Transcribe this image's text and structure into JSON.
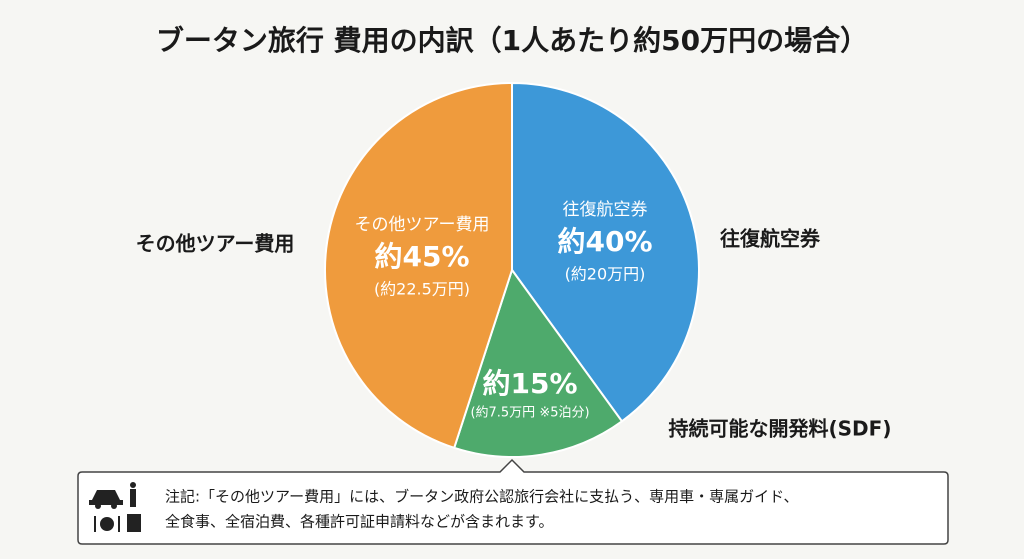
{
  "chart_data": {
    "type": "pie",
    "title": "ブータン旅行 費用の内訳（1人あたり約50万円の場合）",
    "categories": [
      "往復航空券",
      "持続可能な開発料(SDF)",
      "その他ツアー費用"
    ],
    "values": [
      40,
      15,
      45
    ],
    "value_labels": [
      "約40%",
      "約15%",
      "約45%"
    ],
    "amount_labels": [
      "(約20万円)",
      "(約7.5万円 ※5泊分)",
      "(約22.5万円)"
    ],
    "inner_labels": [
      "往復航空券",
      null,
      "その他ツアー費用"
    ],
    "colors": [
      "#3d98d8",
      "#4eaa6c",
      "#ef9b3d"
    ],
    "note": [
      "注記:「その他ツアー費用」には、ブータン政府公認旅行会社に支払う、専用車・専属ガイド、",
      "全食事、全宿泊費、各種許可証申請料などが含まれます。"
    ]
  }
}
